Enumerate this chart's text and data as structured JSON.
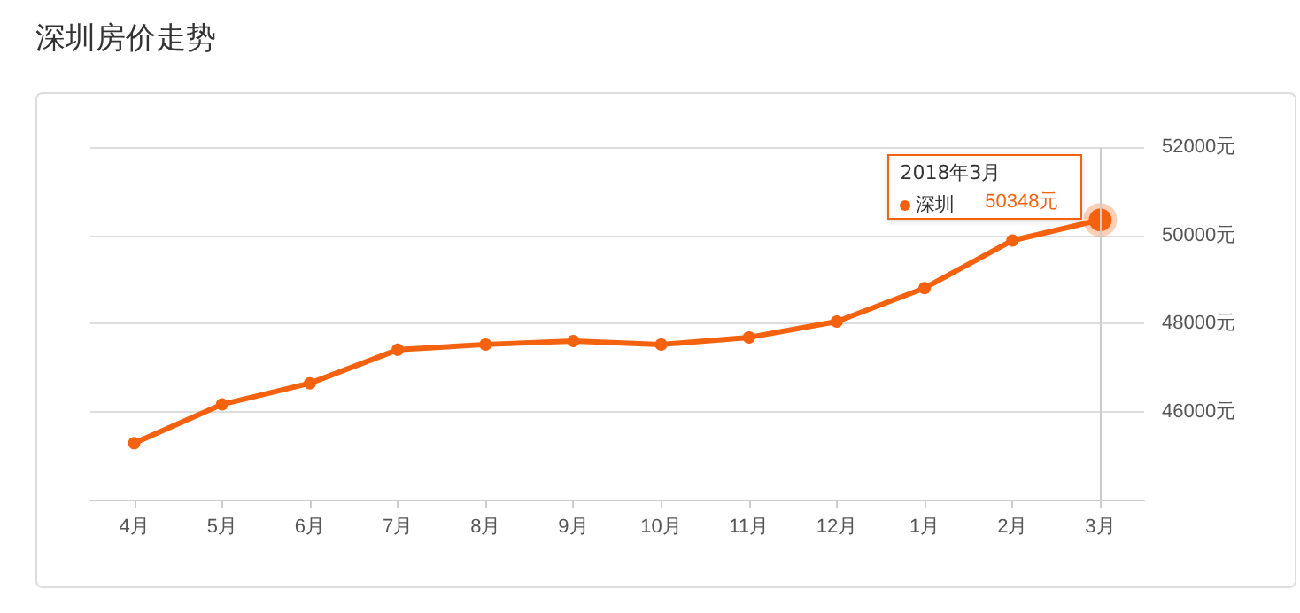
{
  "chart_data": {
    "type": "line",
    "title": "深圳房价走势",
    "categories": [
      "4月",
      "5月",
      "6月",
      "7月",
      "8月",
      "9月",
      "10月",
      "11月",
      "12月",
      "1月",
      "2月",
      "3月"
    ],
    "series": [
      {
        "name": "深圳",
        "color": "#f5620f",
        "values": [
          45280,
          46160,
          46640,
          47400,
          47520,
          47600,
          47520,
          47680,
          48040,
          48800,
          49880,
          50348
        ],
        "value_labels": [
          null,
          null,
          null,
          null,
          null,
          null,
          null,
          null,
          null,
          null,
          null,
          "50348元"
        ]
      }
    ],
    "ylim": [
      44000,
      52000
    ],
    "yticks": [
      {
        "value": 46000,
        "label": "46000元"
      },
      {
        "value": 48000,
        "label": "48000元"
      },
      {
        "value": 50000,
        "label": "50000元"
      },
      {
        "value": 52000,
        "label": "52000元"
      }
    ],
    "grid": "y",
    "marker": "circle",
    "line_style": "solid",
    "legend": "top right",
    "ref_lines": [
      {
        "axis": "x",
        "value": "3月",
        "color": "#cccccc"
      }
    ],
    "annotations": [
      "2018年3月"
    ]
  }
}
